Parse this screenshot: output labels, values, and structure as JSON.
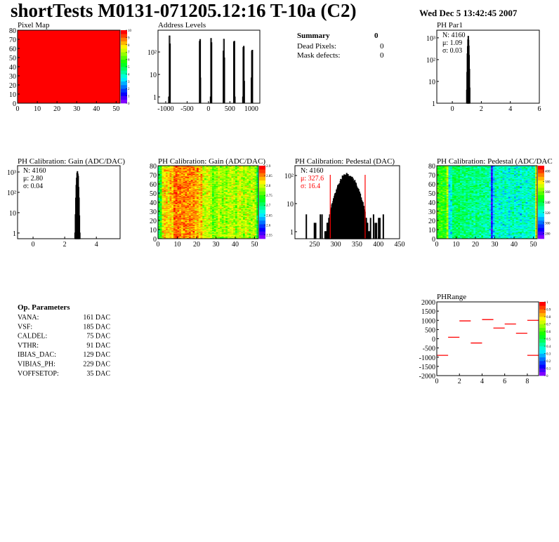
{
  "header": {
    "title": "shortTests M0131-071205.12:16 T-10a (C2)",
    "date": "Wed Dec  5 13:42:45 2007"
  },
  "summary": {
    "title": "Summary",
    "total": "0",
    "rows": [
      {
        "label": "Dead Pixels:",
        "value": "0"
      },
      {
        "label": "Mask defects:",
        "value": "0"
      }
    ]
  },
  "op_parameters": {
    "title": "Op. Parameters",
    "rows": [
      {
        "label": "VANA:",
        "value": "161 DAC"
      },
      {
        "label": "VSF:",
        "value": "185 DAC"
      },
      {
        "label": "CALDEL:",
        "value": "75 DAC"
      },
      {
        "label": "VTHR:",
        "value": "91 DAC"
      },
      {
        "label": "IBIAS_DAC:",
        "value": "129 DAC"
      },
      {
        "label": "VIBIAS_PH:",
        "value": "229 DAC"
      },
      {
        "label": "VOFFSETOP:",
        "value": "35 DAC"
      }
    ]
  },
  "colors": {
    "hist_line": "#000000",
    "fit_lines": "#ff0000",
    "map_uniform": "#ff0000"
  },
  "chart_data": [
    {
      "id": "pixelmap",
      "type": "heatmap",
      "title": "Pixel Map",
      "xlim": [
        0,
        52
      ],
      "ylim": [
        0,
        80
      ],
      "xticks": [
        0,
        10,
        20,
        30,
        40,
        50
      ],
      "yticks": [
        0,
        10,
        20,
        30,
        40,
        50,
        60,
        70,
        80
      ],
      "zlim": [
        0,
        10
      ],
      "zticks": [
        0,
        1,
        2,
        3,
        4,
        5,
        6,
        7,
        8,
        9,
        10
      ],
      "uniform_value": 10
    },
    {
      "id": "address",
      "type": "bar",
      "title": "Address Levels",
      "ylog": true,
      "xlim": [
        -1180,
        1200
      ],
      "xticks": [
        -1000,
        -500,
        0,
        500,
        1000
      ],
      "yticks": [
        {
          "v": 1,
          "l": "1"
        },
        {
          "v": 10,
          "l": "10"
        },
        {
          "v": 100,
          "l": "10²"
        }
      ],
      "peaks": [
        [
          -930,
          1
        ],
        [
          -915,
          520
        ],
        [
          -905,
          230
        ],
        [
          -210,
          300
        ],
        [
          -200,
          360
        ],
        [
          -195,
          7
        ],
        [
          45,
          1
        ],
        [
          55,
          400
        ],
        [
          65,
          260
        ],
        [
          345,
          110
        ],
        [
          355,
          370
        ],
        [
          365,
          55
        ],
        [
          590,
          280
        ],
        [
          600,
          300
        ],
        [
          610,
          1
        ],
        [
          800,
          1
        ],
        [
          810,
          160
        ],
        [
          820,
          180
        ],
        [
          830,
          5
        ],
        [
          1000,
          7
        ],
        [
          1010,
          110
        ],
        [
          1020,
          120
        ]
      ]
    },
    {
      "id": "phpar1",
      "type": "bar",
      "title": "PH Par1",
      "ylog": true,
      "xlim": [
        -1.07,
        6
      ],
      "xticks": [
        0,
        2,
        4,
        6
      ],
      "yticks": [
        {
          "v": 1,
          "l": "1"
        },
        {
          "v": 10,
          "l": "10"
        },
        {
          "v": 100,
          "l": "10²"
        },
        {
          "v": 1000,
          "l": "10³"
        }
      ],
      "stats": {
        "n": "N: 4160",
        "mean": "μ: 1.09",
        "sigma": "σ: 0.03"
      },
      "mean": 1.09,
      "sigma": 0.03,
      "entries": 4160,
      "bin_width": 0.02
    },
    {
      "id": "gainhist",
      "type": "bar",
      "title": "PH Calibration: Gain (ADC/DAC)",
      "ylog": true,
      "xlim": [
        -0.98,
        5.5
      ],
      "xticks": [
        0,
        2,
        4
      ],
      "yticks": [
        {
          "v": 1,
          "l": "1"
        },
        {
          "v": 10,
          "l": "10"
        },
        {
          "v": 100,
          "l": "10²"
        },
        {
          "v": 1000,
          "l": "10³"
        }
      ],
      "stats": {
        "n": "N: 4160",
        "mean": "μ: 2.80",
        "sigma": "σ: 0.04"
      },
      "mean": 2.8,
      "sigma": 0.04,
      "entries": 4160,
      "bin_width": 0.025
    },
    {
      "id": "gainmap",
      "type": "heatmap",
      "title": "PH Calibration: Gain (ADC/DAC)",
      "xlim": [
        0,
        52
      ],
      "ylim": [
        0,
        80
      ],
      "xticks": [
        0,
        10,
        20,
        30,
        40,
        50
      ],
      "yticks": [
        0,
        10,
        20,
        30,
        40,
        50,
        60,
        70,
        80
      ],
      "zlim": [
        2.53,
        2.9
      ],
      "zticks": [
        2.55,
        2.6,
        2.65,
        2.7,
        2.75,
        2.8,
        2.85,
        2.9
      ],
      "column_profile": [
        2.72,
        2.74,
        2.82,
        2.83,
        2.83,
        2.82,
        2.84,
        2.83,
        2.87,
        2.87,
        2.86,
        2.86,
        2.85,
        2.86,
        2.86,
        2.85,
        2.86,
        2.85,
        2.86,
        2.84,
        2.85,
        2.83,
        2.84,
        2.8,
        2.8,
        2.81,
        2.8,
        2.79,
        2.76,
        2.77,
        2.78,
        2.8,
        2.79,
        2.78,
        2.8,
        2.77,
        2.79,
        2.8,
        2.8,
        2.79,
        2.77,
        2.8,
        2.81,
        2.79,
        2.78,
        2.8,
        2.79,
        2.78,
        2.79,
        2.8,
        2.78,
        2.73
      ]
    },
    {
      "id": "pedhist",
      "type": "bar",
      "title": "PH Calibration: Pedestal (DAC)",
      "ylog": true,
      "xlim": [
        204,
        450
      ],
      "xticks": [
        250,
        300,
        350,
        400,
        450
      ],
      "yticks": [
        {
          "v": 1,
          "l": "1"
        },
        {
          "v": 10,
          "l": "10"
        },
        {
          "v": 100,
          "l": "10²"
        }
      ],
      "stats": {
        "n": "N: 4160",
        "mean": "μ: 327.6",
        "sigma": "σ: 16.4"
      },
      "mean": 327.6,
      "sigma": 16.4,
      "entries": 4160,
      "bin_width": 1,
      "cut_lines": [
        287,
        369
      ]
    },
    {
      "id": "pedmap",
      "type": "heatmap",
      "title": "PH Calibration: Pedestal (ADC/DAC",
      "xlim": [
        0,
        52
      ],
      "ylim": [
        0,
        80
      ],
      "xticks": [
        0,
        10,
        20,
        30,
        40,
        50
      ],
      "yticks": [
        0,
        10,
        20,
        30,
        40,
        50,
        60,
        70,
        80
      ],
      "zlim": [
        270,
        410
      ],
      "zticks": [
        280,
        300,
        320,
        340,
        360,
        380,
        400
      ],
      "column_profile": [
        352,
        350,
        352,
        350,
        350,
        368,
        318,
        322,
        338,
        336,
        335,
        338,
        334,
        336,
        332,
        335,
        330,
        334,
        332,
        330,
        333,
        331,
        330,
        332,
        330,
        328,
        331,
        326,
        285,
        312,
        326,
        325,
        322,
        324,
        320,
        326,
        322,
        316,
        324,
        326,
        322,
        325,
        324,
        320,
        326,
        324,
        322,
        325,
        324,
        326,
        326,
        378
      ]
    },
    {
      "id": "phrange",
      "type": "scatter",
      "title": "PHRange",
      "xlim": [
        0,
        9
      ],
      "ylim": [
        -2000,
        2000
      ],
      "xticks": [
        0,
        2,
        4,
        6,
        8
      ],
      "yticks": [
        -2000,
        -1500,
        -1000,
        -500,
        0,
        500,
        1000,
        1500,
        2000
      ],
      "zlim": [
        0,
        1
      ],
      "zticks": [
        0,
        0.1,
        0.2,
        0.3,
        0.4,
        0.5,
        0.6,
        0.7,
        0.8,
        0.9,
        1
      ],
      "segments": [
        [
          0,
          -900
        ],
        [
          1,
          80
        ],
        [
          2,
          970
        ],
        [
          3,
          -230
        ],
        [
          4,
          1040
        ],
        [
          5,
          580
        ],
        [
          6,
          800
        ],
        [
          7,
          300
        ],
        [
          8,
          1000
        ],
        [
          8,
          -900
        ]
      ]
    }
  ]
}
